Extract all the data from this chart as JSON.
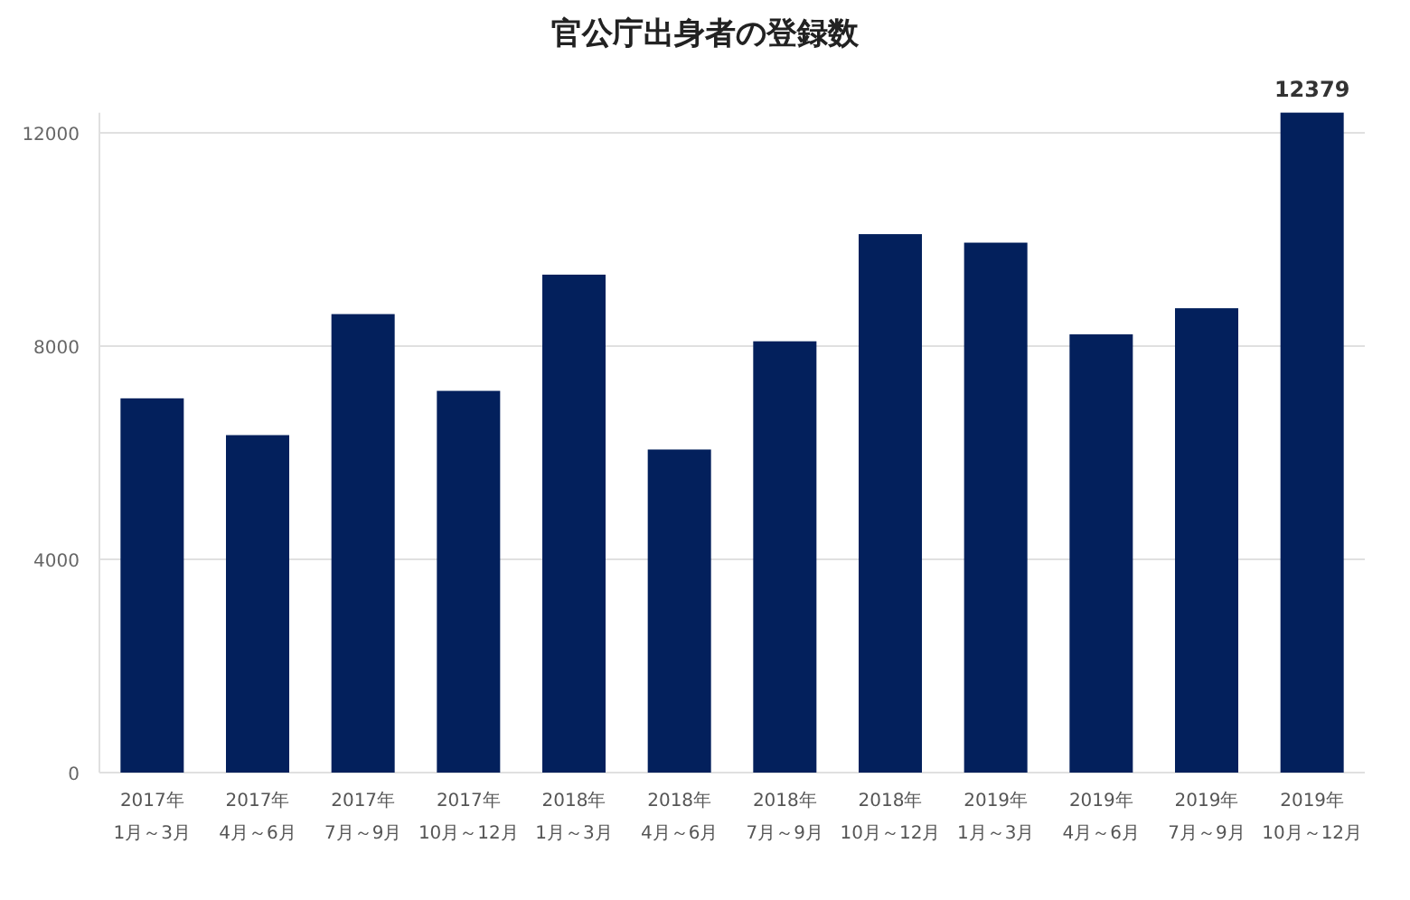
{
  "chart_data": {
    "type": "bar",
    "title": "官公庁出身者の登録数",
    "categories": [
      "2017年 1月～3月",
      "2017年 4月～6月",
      "2017年 7月～9月",
      "2017年 10月～12月",
      "2018年 1月～3月",
      "2018年 4月～6月",
      "2018年 7月～9月",
      "2018年 10月～12月",
      "2019年 1月～3月",
      "2019年 4月～6月",
      "2019年 7月～9月",
      "2019年 10月～12月"
    ],
    "values": [
      7020,
      6330,
      8600,
      7160,
      9340,
      6060,
      8090,
      10100,
      9940,
      8220,
      8710,
      12379
    ],
    "value_labels": [
      null,
      null,
      null,
      null,
      null,
      null,
      null,
      null,
      null,
      null,
      null,
      "12379"
    ],
    "color": "#03205c",
    "ylim": [
      0,
      12379
    ],
    "yticks": [
      0,
      4000,
      8000,
      12000
    ],
    "grid": "y"
  }
}
